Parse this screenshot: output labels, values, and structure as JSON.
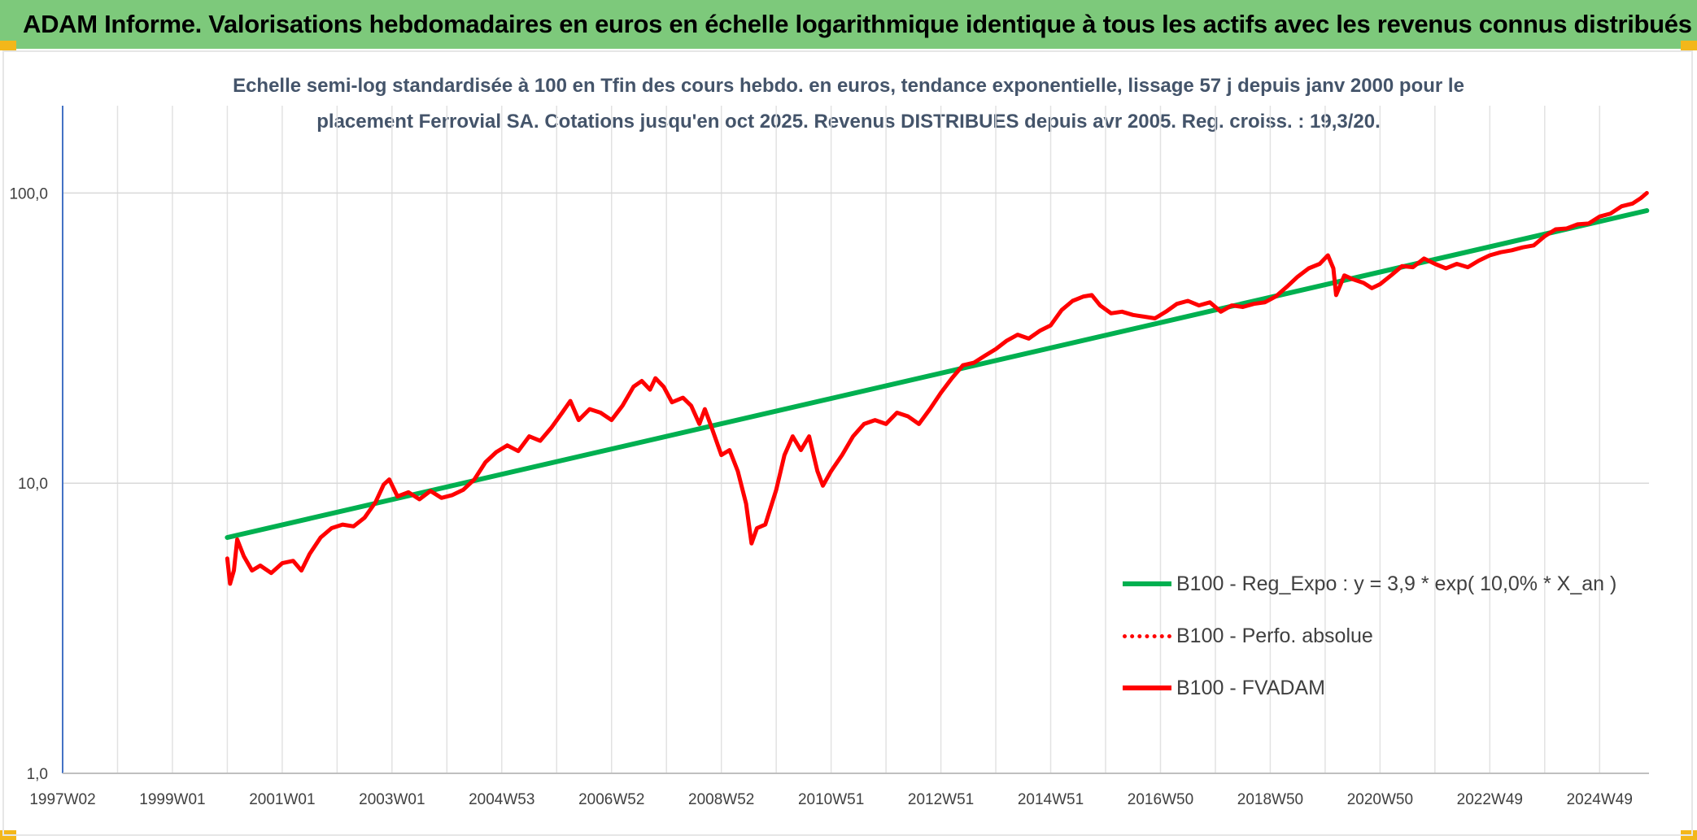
{
  "header": {
    "title": "ADAM Informe. Valorisations hebdomadaires en euros en échelle logarithmique identique à tous les actifs avec les revenus connus distribués"
  },
  "chart_data": {
    "type": "line",
    "title_lines": [
      "Echelle semi-log standardisée à 100 en Tfin des cours hebdo. en euros, tendance exponentielle, lissage 57 j depuis janv 2000 pour le",
      "placement Ferrovial SA. Cotations jusqu'en oct 2025. Revenus DISTRIBUES depuis avr 2005. Reg. croiss. : 19,3/20."
    ],
    "y_scale": "log",
    "ylim": [
      1,
      200
    ],
    "y_ticks": [
      {
        "value": 1,
        "label": "1,0"
      },
      {
        "value": 10,
        "label": "10,0"
      },
      {
        "value": 100,
        "label": "100,0"
      }
    ],
    "xlim": [
      1997.0,
      2025.9
    ],
    "x_ticks": [
      {
        "value": 1997.0,
        "label": "1997W02"
      },
      {
        "value": 1999.0,
        "label": "1999W01"
      },
      {
        "value": 2001.0,
        "label": "2001W01"
      },
      {
        "value": 2003.0,
        "label": "2003W01"
      },
      {
        "value": 2005.0,
        "label": "2004W53"
      },
      {
        "value": 2007.0,
        "label": "2006W52"
      },
      {
        "value": 2009.0,
        "label": "2008W52"
      },
      {
        "value": 2011.0,
        "label": "2010W51"
      },
      {
        "value": 2013.0,
        "label": "2012W51"
      },
      {
        "value": 2015.0,
        "label": "2014W51"
      },
      {
        "value": 2017.0,
        "label": "2016W50"
      },
      {
        "value": 2019.0,
        "label": "2018W50"
      },
      {
        "value": 2021.0,
        "label": "2020W50"
      },
      {
        "value": 2023.0,
        "label": "2022W49"
      },
      {
        "value": 2025.0,
        "label": "2024W49"
      }
    ],
    "grid": true,
    "legend_position": "bottom-right",
    "series": [
      {
        "name": "B100 - Reg_Expo : y = 3,9 * exp( 10,0% *  X_an )",
        "color": "#00b050",
        "style": "solid",
        "points": [
          [
            2000.0,
            6.5
          ],
          [
            2025.86,
            87
          ]
        ]
      },
      {
        "name": "B100 - Perfo. absolue",
        "color": "#ff0000",
        "style": "dotted",
        "points": []
      },
      {
        "name": "B100 - FVADAM",
        "color": "#ff0000",
        "style": "solid",
        "points": [
          [
            2000.0,
            5.5
          ],
          [
            2000.05,
            4.5
          ],
          [
            2000.12,
            5.0
          ],
          [
            2000.18,
            6.4
          ],
          [
            2000.3,
            5.6
          ],
          [
            2000.45,
            5.0
          ],
          [
            2000.6,
            5.2
          ],
          [
            2000.8,
            4.9
          ],
          [
            2001.0,
            5.3
          ],
          [
            2001.2,
            5.4
          ],
          [
            2001.35,
            5.0
          ],
          [
            2001.5,
            5.7
          ],
          [
            2001.7,
            6.5
          ],
          [
            2001.9,
            7.0
          ],
          [
            2002.1,
            7.2
          ],
          [
            2002.3,
            7.1
          ],
          [
            2002.5,
            7.6
          ],
          [
            2002.7,
            8.6
          ],
          [
            2002.85,
            9.9
          ],
          [
            2002.95,
            10.3
          ],
          [
            2003.1,
            9.0
          ],
          [
            2003.3,
            9.3
          ],
          [
            2003.5,
            8.8
          ],
          [
            2003.7,
            9.4
          ],
          [
            2003.9,
            8.9
          ],
          [
            2004.1,
            9.1
          ],
          [
            2004.3,
            9.5
          ],
          [
            2004.5,
            10.3
          ],
          [
            2004.7,
            11.8
          ],
          [
            2004.9,
            12.8
          ],
          [
            2005.1,
            13.5
          ],
          [
            2005.3,
            12.9
          ],
          [
            2005.5,
            14.5
          ],
          [
            2005.7,
            14.0
          ],
          [
            2005.9,
            15.5
          ],
          [
            2006.1,
            17.5
          ],
          [
            2006.25,
            19.2
          ],
          [
            2006.4,
            16.5
          ],
          [
            2006.6,
            18.0
          ],
          [
            2006.8,
            17.5
          ],
          [
            2007.0,
            16.5
          ],
          [
            2007.2,
            18.5
          ],
          [
            2007.4,
            21.5
          ],
          [
            2007.55,
            22.5
          ],
          [
            2007.7,
            21.0
          ],
          [
            2007.8,
            23.0
          ],
          [
            2007.95,
            21.5
          ],
          [
            2008.1,
            19.0
          ],
          [
            2008.3,
            19.7
          ],
          [
            2008.45,
            18.5
          ],
          [
            2008.6,
            16.0
          ],
          [
            2008.7,
            18.0
          ],
          [
            2008.8,
            16.0
          ],
          [
            2009.0,
            12.5
          ],
          [
            2009.15,
            13.0
          ],
          [
            2009.3,
            11.0
          ],
          [
            2009.45,
            8.5
          ],
          [
            2009.55,
            6.2
          ],
          [
            2009.65,
            7.0
          ],
          [
            2009.8,
            7.2
          ],
          [
            2010.0,
            9.5
          ],
          [
            2010.15,
            12.5
          ],
          [
            2010.3,
            14.5
          ],
          [
            2010.45,
            13.0
          ],
          [
            2010.6,
            14.5
          ],
          [
            2010.75,
            11.0
          ],
          [
            2010.85,
            9.8
          ],
          [
            2011.0,
            11.0
          ],
          [
            2011.2,
            12.5
          ],
          [
            2011.4,
            14.5
          ],
          [
            2011.6,
            16.0
          ],
          [
            2011.8,
            16.5
          ],
          [
            2012.0,
            16.0
          ],
          [
            2012.2,
            17.5
          ],
          [
            2012.4,
            17.0
          ],
          [
            2012.6,
            16.0
          ],
          [
            2012.8,
            18.0
          ],
          [
            2013.0,
            20.5
          ],
          [
            2013.2,
            23.0
          ],
          [
            2013.4,
            25.5
          ],
          [
            2013.6,
            26.0
          ],
          [
            2013.8,
            27.5
          ],
          [
            2014.0,
            29.0
          ],
          [
            2014.2,
            31.0
          ],
          [
            2014.4,
            32.5
          ],
          [
            2014.6,
            31.5
          ],
          [
            2014.8,
            33.5
          ],
          [
            2015.0,
            35.0
          ],
          [
            2015.2,
            39.5
          ],
          [
            2015.4,
            42.5
          ],
          [
            2015.6,
            44.0
          ],
          [
            2015.75,
            44.5
          ],
          [
            2015.9,
            41.0
          ],
          [
            2016.1,
            38.5
          ],
          [
            2016.3,
            39.0
          ],
          [
            2016.5,
            38.0
          ],
          [
            2016.7,
            37.5
          ],
          [
            2016.9,
            37.0
          ],
          [
            2017.1,
            39.0
          ],
          [
            2017.3,
            41.5
          ],
          [
            2017.5,
            42.5
          ],
          [
            2017.7,
            41.0
          ],
          [
            2017.9,
            42.0
          ],
          [
            2018.1,
            39.0
          ],
          [
            2018.3,
            41.0
          ],
          [
            2018.5,
            40.5
          ],
          [
            2018.7,
            41.5
          ],
          [
            2018.9,
            42.0
          ],
          [
            2019.1,
            44.0
          ],
          [
            2019.3,
            47.5
          ],
          [
            2019.5,
            51.5
          ],
          [
            2019.7,
            55.0
          ],
          [
            2019.9,
            57.0
          ],
          [
            2020.05,
            61.0
          ],
          [
            2020.15,
            55.0
          ],
          [
            2020.2,
            44.5
          ],
          [
            2020.35,
            52.0
          ],
          [
            2020.5,
            50.5
          ],
          [
            2020.7,
            49.0
          ],
          [
            2020.85,
            47.0
          ],
          [
            2021.0,
            48.5
          ],
          [
            2021.2,
            52.0
          ],
          [
            2021.4,
            56.0
          ],
          [
            2021.6,
            55.5
          ],
          [
            2021.8,
            59.5
          ],
          [
            2022.0,
            57.0
          ],
          [
            2022.2,
            55.0
          ],
          [
            2022.4,
            57.0
          ],
          [
            2022.6,
            55.5
          ],
          [
            2022.8,
            58.5
          ],
          [
            2023.0,
            61.0
          ],
          [
            2023.2,
            62.5
          ],
          [
            2023.4,
            63.5
          ],
          [
            2023.6,
            65.0
          ],
          [
            2023.8,
            66.0
          ],
          [
            2024.0,
            71.0
          ],
          [
            2024.2,
            75.0
          ],
          [
            2024.4,
            75.5
          ],
          [
            2024.6,
            78.0
          ],
          [
            2024.8,
            78.5
          ],
          [
            2025.0,
            83.0
          ],
          [
            2025.2,
            85.0
          ],
          [
            2025.4,
            90.0
          ],
          [
            2025.6,
            92.0
          ],
          [
            2025.75,
            96.0
          ],
          [
            2025.86,
            100.0
          ]
        ]
      }
    ]
  }
}
